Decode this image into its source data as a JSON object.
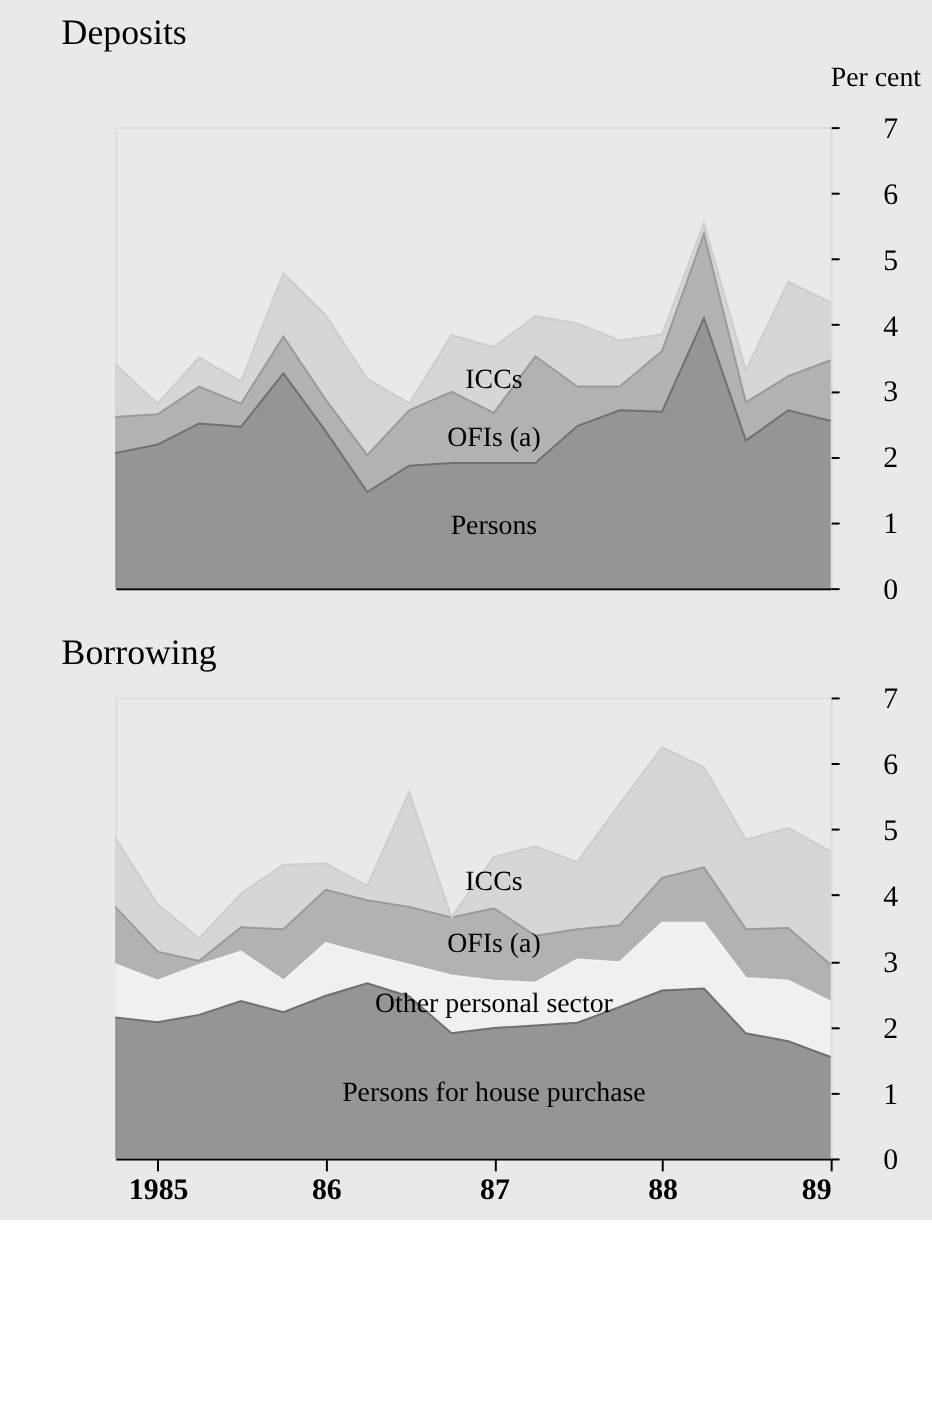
{
  "chart_data": [
    {
      "type": "area",
      "title": "Deposits",
      "ylabel": "Per cent",
      "stacked": true,
      "grid": false,
      "legend": false,
      "tick_labels": "y",
      "x": [
        "1984-10",
        "1985-01",
        "1985-04",
        "1985-07",
        "1985-10",
        "1986-01",
        "1986-04",
        "1986-07",
        "1986-10",
        "1987-01",
        "1987-04",
        "1987-07",
        "1987-10",
        "1988-01",
        "1988-04",
        "1988-07",
        "1988-10",
        "1989-01"
      ],
      "xlim": [
        "1984-10",
        "1989-01"
      ],
      "ylim": [
        0,
        7
      ],
      "yticks": [
        0,
        1,
        2,
        3,
        4,
        5,
        6,
        7
      ],
      "series": [
        {
          "name": "Persons",
          "color": "#707070",
          "values": [
            2.05,
            2.18,
            2.5,
            2.45,
            3.26,
            2.38,
            1.46,
            1.86,
            1.9,
            1.9,
            1.9,
            2.46,
            2.7,
            2.68,
            4.1,
            2.24,
            2.7,
            2.54
          ]
        },
        {
          "name": "OFIs (a)",
          "color": "#9a9a9a",
          "values": [
            0.55,
            0.46,
            0.56,
            0.35,
            0.56,
            0.48,
            0.56,
            0.84,
            1.08,
            0.76,
            1.62,
            0.6,
            0.36,
            0.92,
            1.28,
            0.58,
            0.52,
            0.92
          ]
        },
        {
          "name": "ICCs",
          "color": "#cdcdcd",
          "values": [
            0.8,
            0.16,
            0.44,
            0.34,
            0.96,
            1.28,
            1.16,
            0.1,
            0.86,
            1.0,
            0.61,
            0.96,
            0.7,
            0.25,
            0.16,
            0.48,
            1.43,
            0.88
          ]
        }
      ]
    },
    {
      "type": "area",
      "title": "Borrowing",
      "stacked": true,
      "grid": false,
      "legend": false,
      "x": [
        "1984-10",
        "1985-01",
        "1985-04",
        "1985-07",
        "1985-10",
        "1986-01",
        "1986-04",
        "1986-07",
        "1986-10",
        "1987-01",
        "1987-04",
        "1987-07",
        "1987-10",
        "1988-01",
        "1988-04",
        "1988-07",
        "1988-10",
        "1989-01"
      ],
      "xlim": [
        "1984-10",
        "1989-01"
      ],
      "xticks": [
        {
          "value": "1985-01",
          "label": "1985"
        },
        {
          "value": "1986-01",
          "label": "86"
        },
        {
          "value": "1987-01",
          "label": "87"
        },
        {
          "value": "1988-01",
          "label": "88"
        },
        {
          "value": "1989-01",
          "label": "89"
        }
      ],
      "ylim": [
        0,
        7
      ],
      "yticks": [
        0,
        1,
        2,
        3,
        4,
        5,
        6,
        7
      ],
      "series": [
        {
          "name": "Persons for house purchase",
          "color": "#707070",
          "values": [
            2.14,
            2.07,
            2.18,
            2.39,
            2.22,
            2.47,
            2.66,
            2.46,
            1.9,
            1.98,
            2.02,
            2.06,
            2.3,
            2.55,
            2.58,
            1.9,
            1.78,
            1.54
          ]
        },
        {
          "name": "Other personal sector",
          "color": "#f2f2f2",
          "values": [
            0.81,
            0.63,
            0.76,
            0.75,
            0.48,
            0.8,
            0.44,
            0.48,
            0.88,
            0.72,
            0.65,
            0.96,
            0.68,
            1.03,
            1.0,
            0.84,
            0.92,
            0.84
          ]
        },
        {
          "name": "OFIs (a)",
          "color": "#9a9a9a",
          "values": [
            0.87,
            0.44,
            0.06,
            0.37,
            0.78,
            0.81,
            0.82,
            0.88,
            0.88,
            1.1,
            0.71,
            0.46,
            0.56,
            0.68,
            0.84,
            0.74,
            0.8,
            0.56
          ]
        },
        {
          "name": "ICCs",
          "color": "#cdcdcd",
          "values": [
            1.04,
            0.72,
            0.34,
            0.51,
            0.98,
            0.4,
            0.22,
            1.74,
            0.0,
            0.78,
            1.36,
            1.02,
            1.84,
            1.98,
            1.52,
            1.36,
            1.52,
            1.72
          ]
        }
      ]
    }
  ]
}
